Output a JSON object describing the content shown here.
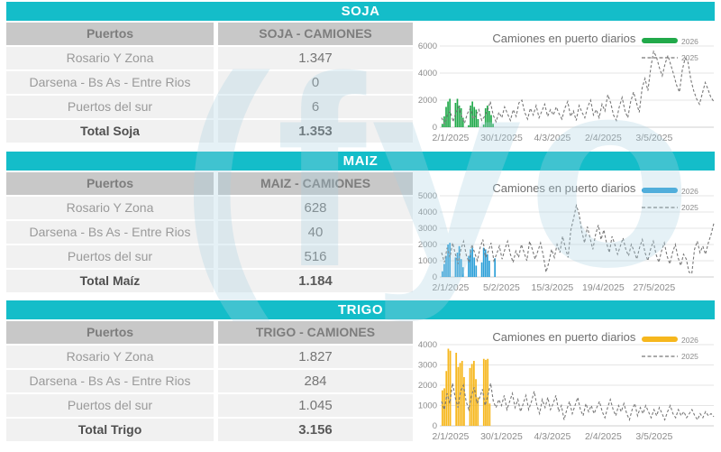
{
  "watermark": {
    "text": "(fyo",
    "color": "rgba(170,207,224,0.30)"
  },
  "colors": {
    "teal_header": "#14bdc9",
    "table_header_bg": "#c8c8c8",
    "row_bg": "#f1f1f1",
    "soja_accent": "#21a94a",
    "maiz_accent": "#2b9fd8",
    "trigo_accent": "#f6b71d",
    "line_2025": "#787878"
  },
  "sections": [
    {
      "title": "SOJA",
      "table": {
        "col1_header": "Puertos",
        "col2_header": "SOJA - CAMIONES",
        "rows": [
          {
            "label": "Rosario Y Zona",
            "value": "1.347"
          },
          {
            "label": "Darsena - Bs As - Entre Rios",
            "value": "0"
          },
          {
            "label": "Puertos del sur",
            "value": "6"
          }
        ],
        "total_label": "Total Soja",
        "total_value": "1.353"
      }
    },
    {
      "title": "MAIZ",
      "table": {
        "col1_header": "Puertos",
        "col2_header": "MAIZ - CAMIONES",
        "rows": [
          {
            "label": "Rosario Y Zona",
            "value": "628"
          },
          {
            "label": "Darsena - Bs As - Entre Rios",
            "value": "40"
          },
          {
            "label": "Puertos del sur",
            "value": "516"
          }
        ],
        "total_label": "Total Maíz",
        "total_value": "1.184"
      }
    },
    {
      "title": "TRIGO",
      "table": {
        "col1_header": "Puertos",
        "col2_header": "TRIGO - CAMIONES",
        "rows": [
          {
            "label": "Rosario Y Zona",
            "value": "1.827"
          },
          {
            "label": "Darsena - Bs As - Entre Rios",
            "value": "284"
          },
          {
            "label": "Puertos del sur",
            "value": "1.045"
          }
        ],
        "total_label": "Total Trigo",
        "total_value": "3.156"
      }
    }
  ],
  "chart_data": [
    {
      "type": "combo-bar-line",
      "title": "Camiones en puerto diarios",
      "ylim": [
        0,
        6000
      ],
      "yticks": [
        0,
        2000,
        4000,
        6000
      ],
      "xtick_labels": [
        "2/1/2025",
        "30/1/2025",
        "4/3/2025",
        "2/4/2025",
        "3/5/2025"
      ],
      "legend_position": "top-right",
      "grid": true,
      "bar_span_fraction": 0.2,
      "series": [
        {
          "name": "2026",
          "style": "bar",
          "color": "#21a94a",
          "values": [
            250,
            800,
            1500,
            1900,
            2100,
            0,
            0,
            1800,
            2100,
            1600,
            1400,
            700,
            0,
            0,
            150,
            1600,
            1900,
            1500,
            1300,
            600,
            0,
            0,
            200,
            1400,
            1600,
            1200,
            900,
            250,
            0
          ]
        },
        {
          "name": "2025",
          "style": "dashed-line",
          "color": "#787878",
          "values": [
            700,
            250,
            900,
            1200,
            400,
            1100,
            1500,
            800,
            300,
            1000,
            1400,
            600,
            900,
            1300,
            500,
            800,
            1200,
            1900,
            900,
            400,
            1100,
            700,
            1500,
            1000,
            500,
            1300,
            800,
            1800,
            2000,
            1100,
            600,
            1400,
            900,
            1600,
            700,
            1200,
            1700,
            800,
            1300,
            900,
            1500,
            1000,
            600,
            1400,
            1900,
            800,
            1200,
            500,
            1600,
            1100,
            700,
            1500,
            2000,
            900,
            1300,
            700,
            1700,
            1200,
            2400,
            1800,
            900,
            500,
            1500,
            2200,
            1200,
            700,
            1900,
            2600,
            1800,
            1100,
            2900,
            3600,
            2700,
            4400,
            5600,
            5200,
            4400,
            3800,
            4700,
            5300,
            4600,
            3900,
            3100,
            2600,
            4200,
            5100,
            4800,
            3500,
            2700,
            2100,
            1700,
            2500,
            3300,
            2800,
            2200,
            1900
          ]
        }
      ]
    },
    {
      "type": "combo-bar-line",
      "title": "Camiones en puerto diarios",
      "ylim": [
        0,
        5000
      ],
      "yticks": [
        0,
        1000,
        2000,
        3000,
        4000,
        5000
      ],
      "xtick_labels": [
        "2/1/2025",
        "5/2/2025",
        "15/3/2025",
        "19/4/2025",
        "27/5/2025"
      ],
      "legend_position": "top-right",
      "grid": true,
      "bar_span_fraction": 0.2,
      "series": [
        {
          "name": "2026",
          "style": "bar",
          "color": "#2b9fd8",
          "values": [
            350,
            800,
            1300,
            2000,
            2100,
            0,
            0,
            1200,
            1500,
            1900,
            1100,
            600,
            0,
            0,
            1300,
            1700,
            1800,
            1200,
            700,
            0,
            0,
            900,
            1800,
            1700,
            1400,
            1000,
            0,
            0,
            1150
          ]
        },
        {
          "name": "2025",
          "style": "dashed-line",
          "color": "#787878",
          "values": [
            1500,
            900,
            1800,
            1200,
            2100,
            1400,
            800,
            1700,
            2200,
            1300,
            900,
            2000,
            1500,
            1000,
            1800,
            2300,
            1200,
            1600,
            2100,
            1000,
            1400,
            1900,
            1100,
            1700,
            2200,
            1400,
            900,
            1600,
            1200,
            2000,
            1500,
            1000,
            2200,
            1700,
            1100,
            1600,
            2100,
            1300,
            300,
            900,
            1700,
            1200,
            2000,
            1500,
            2500,
            1800,
            1200,
            2900,
            3600,
            4400,
            3900,
            2800,
            2100,
            3100,
            2400,
            1700,
            2600,
            3200,
            2300,
            2900,
            2100,
            1500,
            2500,
            2000,
            1400,
            1900,
            2400,
            1700,
            1300,
            2000,
            1600,
            1100,
            1800,
            2300,
            1500,
            1000,
            1700,
            2200,
            1400,
            900,
            1600,
            2100,
            1300,
            800,
            1500,
            2000,
            1200,
            700,
            1400,
            1100,
            300,
            200,
            1700,
            2200,
            1500,
            1900,
            1400,
            2100,
            2600,
            3300
          ]
        }
      ]
    },
    {
      "type": "combo-bar-line",
      "title": "Camiones en puerto diarios",
      "ylim": [
        0,
        4000
      ],
      "yticks": [
        0,
        1000,
        2000,
        3000,
        4000
      ],
      "xtick_labels": [
        "2/1/2025",
        "30/1/2025",
        "4/3/2025",
        "2/4/2025",
        "3/5/2025"
      ],
      "legend_position": "top-right",
      "grid": true,
      "bar_span_fraction": 0.21,
      "series": [
        {
          "name": "2026",
          "style": "bar",
          "color": "#f6b71d",
          "values": [
            1750,
            1850,
            2700,
            3800,
            3700,
            0,
            0,
            3600,
            2900,
            3100,
            3200,
            2400,
            0,
            0,
            2850,
            3050,
            3200,
            2300,
            1400,
            0,
            0,
            3300,
            3250,
            3300,
            1100,
            0,
            0,
            0,
            0
          ]
        },
        {
          "name": "2025",
          "style": "dashed-line",
          "color": "#787878",
          "values": [
            1200,
            800,
            1600,
            1100,
            2100,
            1400,
            900,
            1700,
            2000,
            1200,
            800,
            1500,
            1900,
            1100,
            1400,
            1800,
            1000,
            1500,
            2100,
            1200,
            900,
            1300,
            1000,
            1500,
            800,
            1200,
            1600,
            900,
            1300,
            700,
            1100,
            1500,
            800,
            1200,
            1700,
            1000,
            600,
            1300,
            900,
            1400,
            800,
            1100,
            1500,
            700,
            1000,
            300,
            800,
            1200,
            600,
            1000,
            1400,
            800,
            500,
            1100,
            700,
            1000,
            600,
            900,
            1200,
            700,
            400,
            900,
            1300,
            800,
            500,
            1000,
            700,
            1100,
            600,
            300,
            800,
            1100,
            500,
            900,
            600,
            1000,
            700,
            400,
            800,
            500,
            900,
            600,
            300,
            700,
            1000,
            600,
            400,
            800,
            500,
            700,
            400,
            600,
            800,
            500,
            300,
            600,
            400,
            700,
            500,
            600,
            450
          ]
        }
      ]
    }
  ]
}
